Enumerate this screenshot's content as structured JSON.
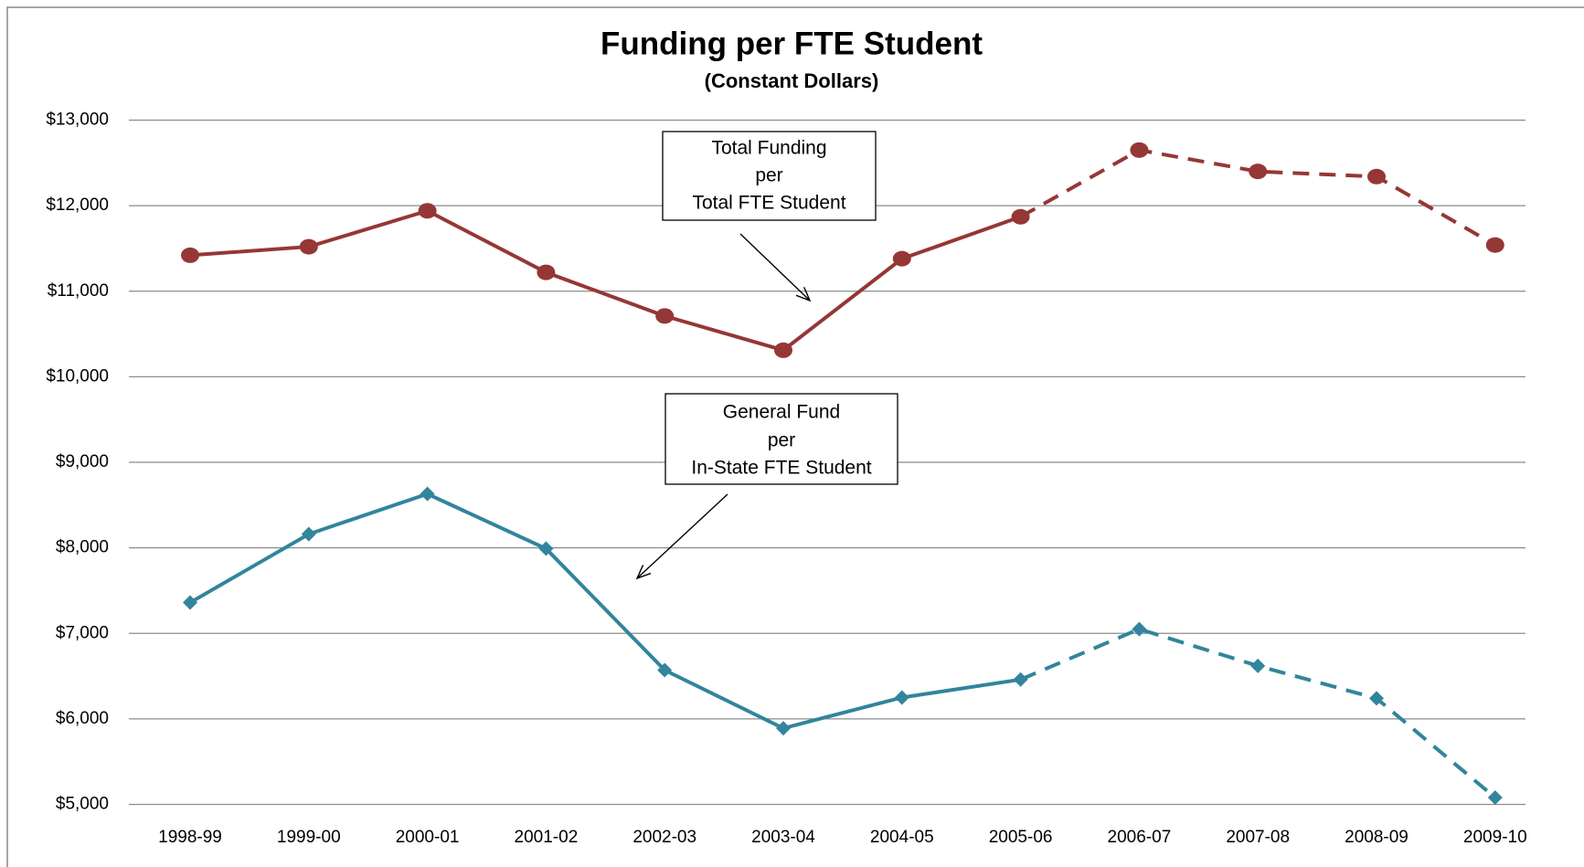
{
  "chart_data": {
    "type": "line",
    "title": "Funding per FTE Student",
    "subtitle": "(Constant Dollars)",
    "categories": [
      "1998-99",
      "1999-00",
      "2000-01",
      "2001-02",
      "2002-03",
      "2003-04",
      "2004-05",
      "2005-06",
      "2006-07",
      "2007-08",
      "2008-09",
      "2009-10"
    ],
    "series": [
      {
        "name": "Total Funding per Total FTE Student",
        "color": "#953735",
        "marker": "circle",
        "dashed_from": 7,
        "values": [
          11420,
          11520,
          11940,
          11220,
          10710,
          10310,
          11380,
          11870,
          12650,
          12400,
          12340,
          11540
        ]
      },
      {
        "name": "General Fund per In-State FTE Student",
        "color": "#31859c",
        "marker": "diamond",
        "dashed_from": 7,
        "values": [
          7360,
          8160,
          8630,
          7990,
          6570,
          5890,
          6250,
          6460,
          7050,
          6620,
          6240,
          5080
        ]
      }
    ],
    "annotations": [
      {
        "lines": [
          "Total Funding",
          "per",
          "Total FTE Student"
        ]
      },
      {
        "lines": [
          "General Fund",
          "per",
          "In-State FTE Student"
        ]
      }
    ],
    "ylim": [
      5000,
      13000
    ],
    "yticks": [
      {
        "value": 5000,
        "label": "$5,000"
      },
      {
        "value": 6000,
        "label": "$6,000"
      },
      {
        "value": 7000,
        "label": "$7,000"
      },
      {
        "value": 8000,
        "label": "$8,000"
      },
      {
        "value": 9000,
        "label": "$9,000"
      },
      {
        "value": 10000,
        "label": "$10,000"
      },
      {
        "value": 11000,
        "label": "$11,000"
      },
      {
        "value": 12000,
        "label": "$12,000"
      },
      {
        "value": 13000,
        "label": "$13,000"
      }
    ],
    "grid": true
  }
}
